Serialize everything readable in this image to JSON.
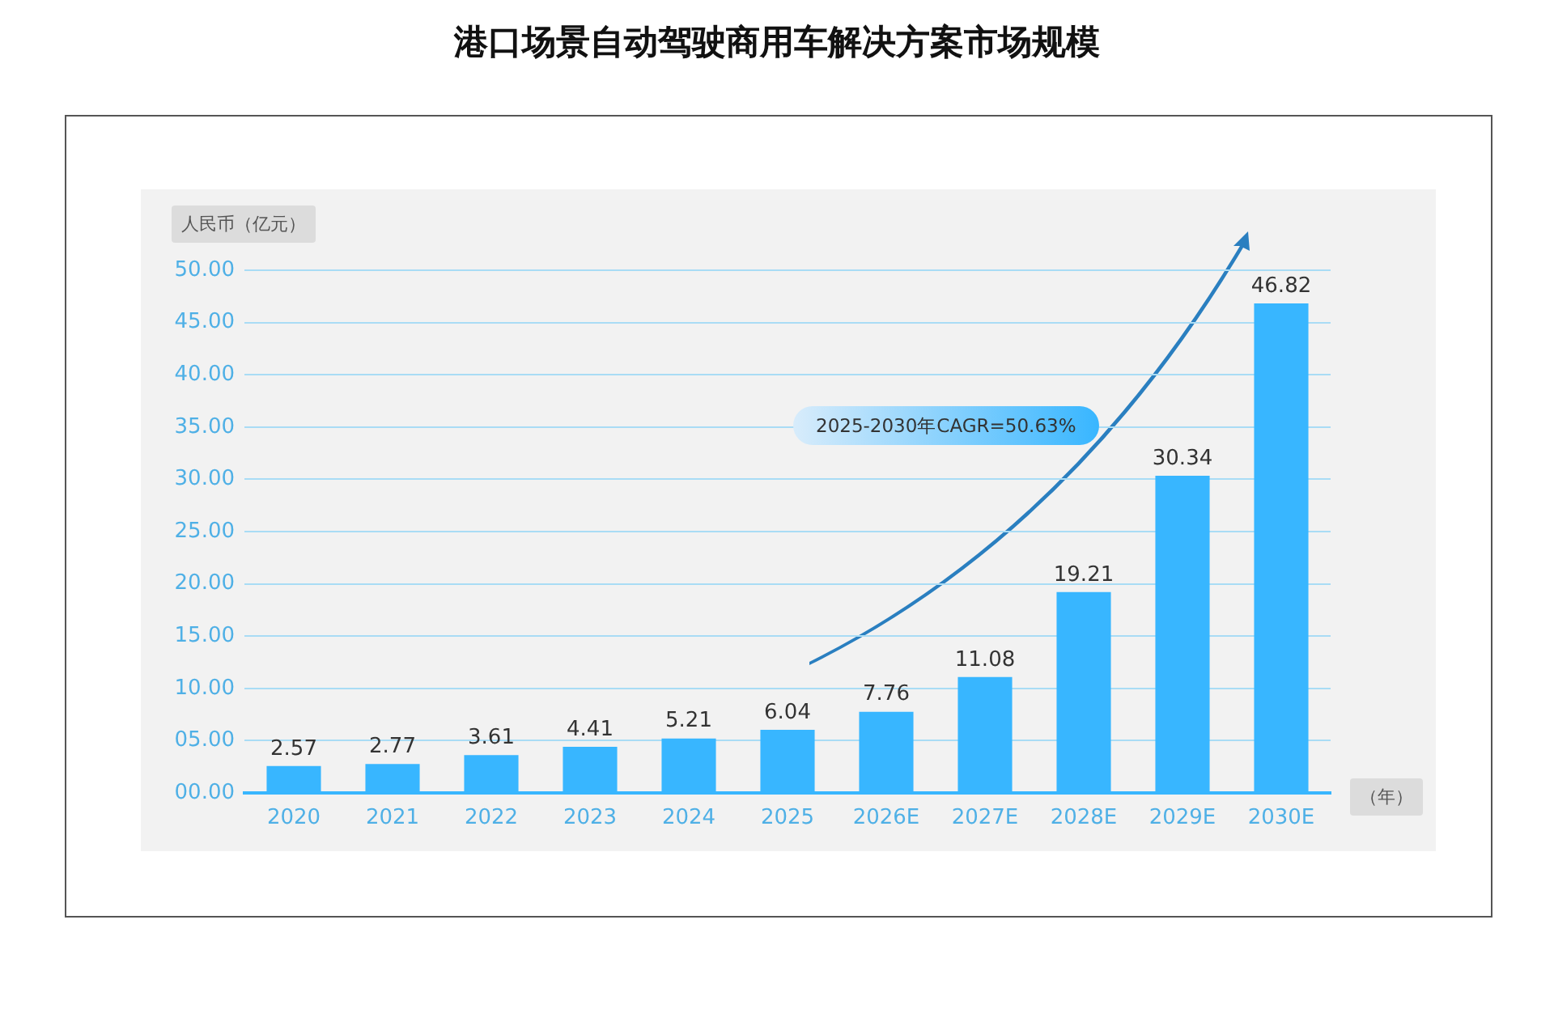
{
  "chart_data": {
    "type": "bar",
    "title": "港口场景自动驾驶商用车解决方案市场规模",
    "ylabel": "人民币（亿元）",
    "xlabel": "（年）",
    "categories": [
      "2020",
      "2021",
      "2022",
      "2023",
      "2024",
      "2025",
      "2026E",
      "2027E",
      "2028E",
      "2029E",
      "2030E"
    ],
    "values": [
      2.57,
      2.77,
      3.61,
      4.41,
      5.21,
      6.04,
      7.76,
      11.08,
      19.21,
      30.34,
      46.82
    ],
    "color": "#38b6ff",
    "data_labels": true,
    "grid": "y",
    "ylim": [
      0,
      50
    ],
    "yticks": [
      {
        "value": 0,
        "label": "00.00"
      },
      {
        "value": 5,
        "label": "05.00"
      },
      {
        "value": 10,
        "label": "10.00"
      },
      {
        "value": 15,
        "label": "15.00"
      },
      {
        "value": 20,
        "label": "20.00"
      },
      {
        "value": 25,
        "label": "25.00"
      },
      {
        "value": 30,
        "label": "30.00"
      },
      {
        "value": 35,
        "label": "35.00"
      },
      {
        "value": 40,
        "label": "40.00"
      },
      {
        "value": 45,
        "label": "45.00"
      },
      {
        "value": 50,
        "label": "50.00"
      }
    ],
    "annotations": [
      "2025-2030年CAGR=50.63%"
    ]
  }
}
